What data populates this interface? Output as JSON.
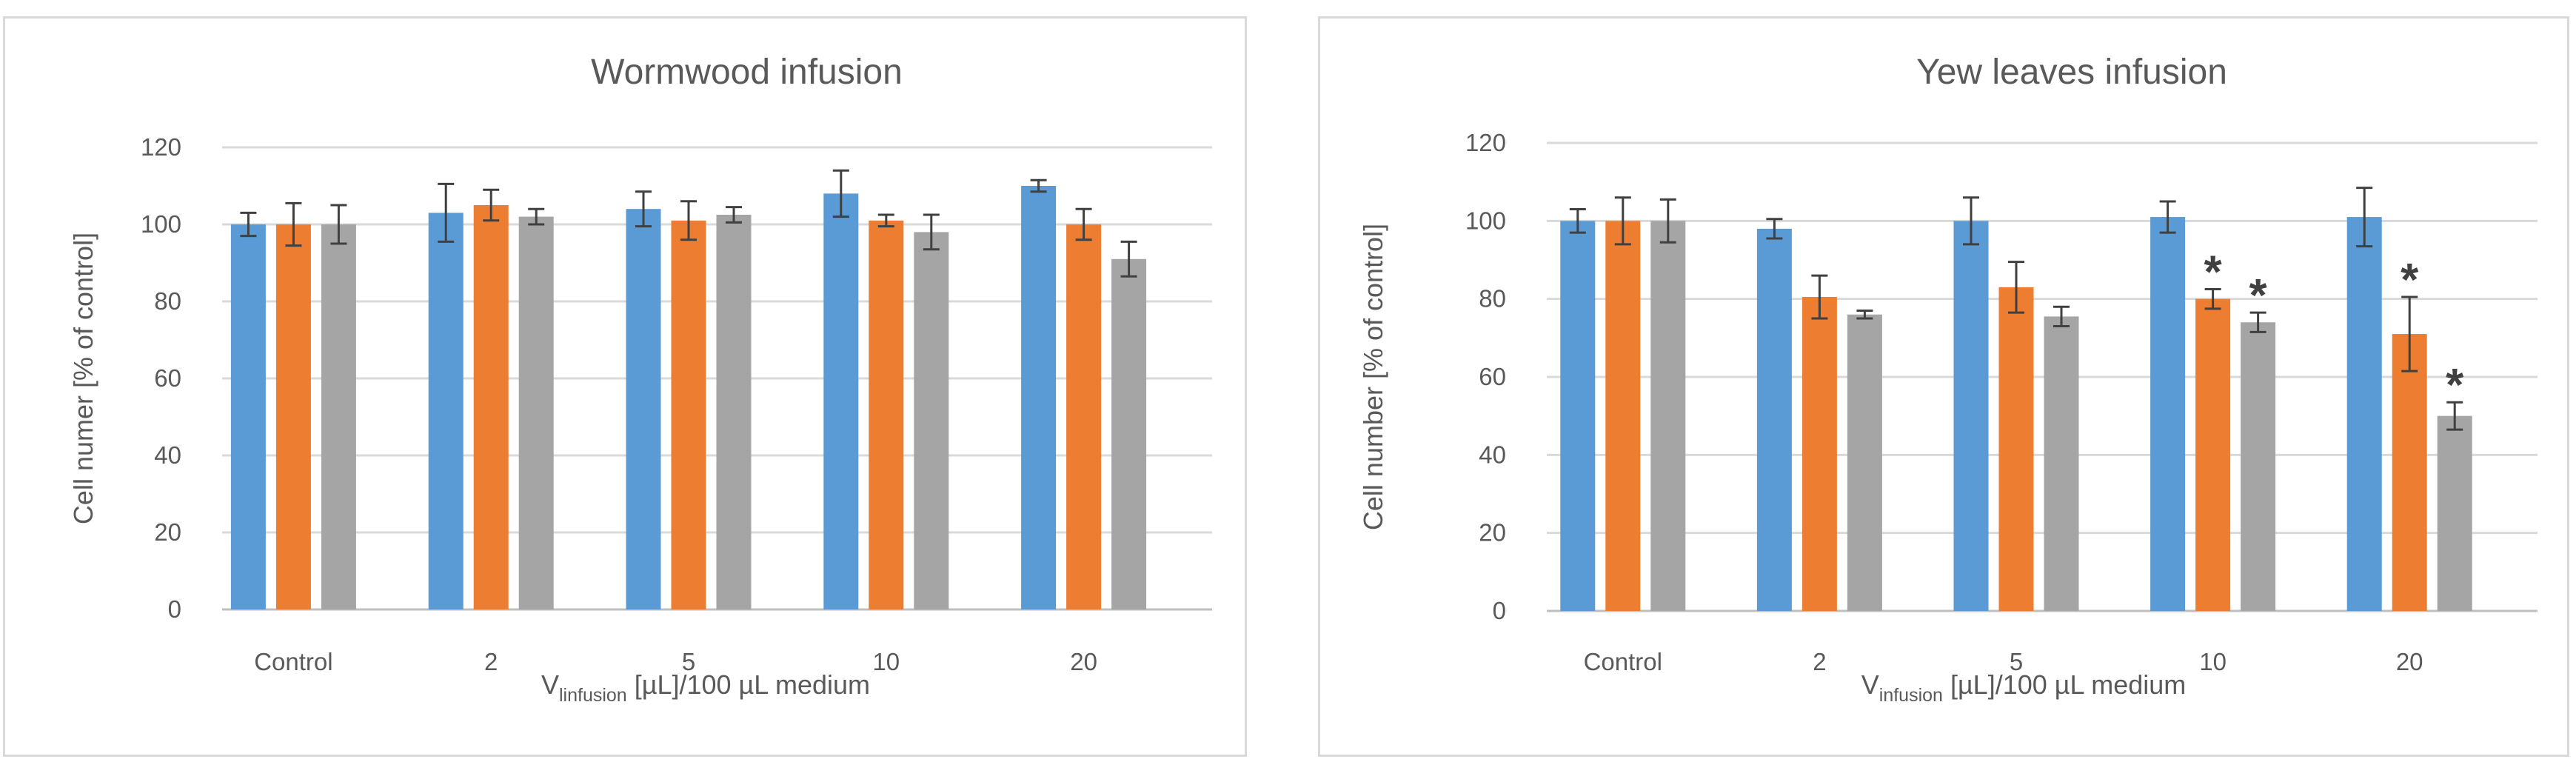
{
  "colors": {
    "series": [
      "#5b9bd5",
      "#ed7d31",
      "#a5a5a5"
    ],
    "grid": "#d9d9d9",
    "text": "#595959",
    "error": "#404040"
  },
  "chart_data": [
    {
      "type": "bar",
      "title": "Wormwood infusion",
      "ylabel": "Cell numer [% of control]",
      "xlabel_main": "V",
      "xlabel_sub": "linfusion",
      "xlabel_rest": " [µL]/100 µL medium",
      "categories": [
        "Control",
        "2",
        "5",
        "10",
        "20"
      ],
      "ylim": [
        0,
        120
      ],
      "yticks": [
        "0",
        "20",
        "40",
        "60",
        "80",
        "100",
        "120"
      ],
      "grid": true,
      "series": [
        {
          "values": [
            100,
            103,
            104,
            108,
            110
          ],
          "errors": [
            3,
            7.5,
            4.5,
            6,
            1.5
          ],
          "stars": [
            "",
            "",
            "",
            "",
            ""
          ]
        },
        {
          "values": [
            100,
            105,
            101,
            101,
            100
          ],
          "errors": [
            5.5,
            4,
            5,
            1.5,
            4
          ],
          "stars": [
            "",
            "",
            "",
            "",
            ""
          ]
        },
        {
          "values": [
            100,
            102,
            102.5,
            98,
            91
          ],
          "errors": [
            5,
            2,
            2,
            4.5,
            4.5
          ],
          "stars": [
            "",
            "",
            "",
            "",
            ""
          ]
        }
      ]
    },
    {
      "type": "bar",
      "title": "Yew leaves infusion",
      "ylabel": "Cell number [% of control]",
      "xlabel_main": "V",
      "xlabel_sub": "infusion",
      "xlabel_rest": " [µL]/100 µL medium",
      "categories": [
        "Control",
        "2",
        "5",
        "10",
        "20"
      ],
      "ylim": [
        0,
        120
      ],
      "yticks": [
        "0",
        "20",
        "40",
        "60",
        "80",
        "100",
        "120"
      ],
      "grid": true,
      "series": [
        {
          "values": [
            100,
            98,
            100,
            101,
            101
          ],
          "errors": [
            3,
            2.5,
            6,
            4,
            7.5
          ],
          "stars": [
            "",
            "",
            "",
            "",
            ""
          ]
        },
        {
          "values": [
            100,
            80.5,
            83,
            80,
            71
          ],
          "errors": [
            6,
            5.5,
            6.5,
            2.5,
            9.5
          ],
          "stars": [
            "",
            "",
            "",
            "*",
            "*"
          ]
        },
        {
          "values": [
            100,
            76,
            75.5,
            74,
            50
          ],
          "errors": [
            5.5,
            1,
            2.5,
            2.5,
            3.5
          ],
          "stars": [
            "",
            "",
            "",
            "*",
            "*"
          ]
        }
      ]
    }
  ]
}
